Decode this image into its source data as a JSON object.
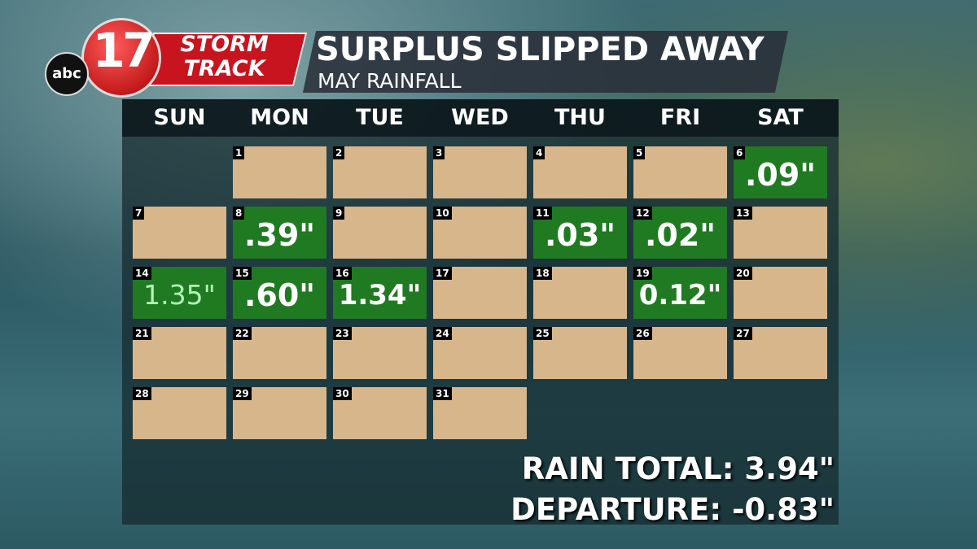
{
  "logo": {
    "network": "abc",
    "channel": "17",
    "brand_line1": "STORM",
    "brand_line2": "TRACK"
  },
  "header": {
    "title": "SURPLUS SLIPPED AWAY",
    "subtitle": "MAY RAINFALL"
  },
  "calendar": {
    "weekdays": [
      "SUN",
      "MON",
      "TUE",
      "WED",
      "THU",
      "FRI",
      "SAT"
    ],
    "days": [
      {
        "day": 1
      },
      {
        "day": 2
      },
      {
        "day": 3
      },
      {
        "day": 4
      },
      {
        "day": 5
      },
      {
        "day": 6,
        "rain": ".09\""
      },
      {
        "day": 7
      },
      {
        "day": 8,
        "rain": ".39\""
      },
      {
        "day": 9
      },
      {
        "day": 10
      },
      {
        "day": 11,
        "rain": ".03\""
      },
      {
        "day": 12,
        "rain": ".02\""
      },
      {
        "day": 13
      },
      {
        "day": 14,
        "rain": "1.35\""
      },
      {
        "day": 15,
        "rain": ".60\""
      },
      {
        "day": 16,
        "rain": "1.34\""
      },
      {
        "day": 17
      },
      {
        "day": 18
      },
      {
        "day": 19,
        "rain": "0.12\""
      },
      {
        "day": 20
      },
      {
        "day": 21
      },
      {
        "day": 22
      },
      {
        "day": 23
      },
      {
        "day": 24
      },
      {
        "day": 25
      },
      {
        "day": 26
      },
      {
        "day": 27
      },
      {
        "day": 28
      },
      {
        "day": 29
      },
      {
        "day": 30
      },
      {
        "day": 31
      }
    ]
  },
  "summary": {
    "total": "RAIN TOTAL: 3.94\"",
    "departure": "DEPARTURE: -0.83\""
  }
}
